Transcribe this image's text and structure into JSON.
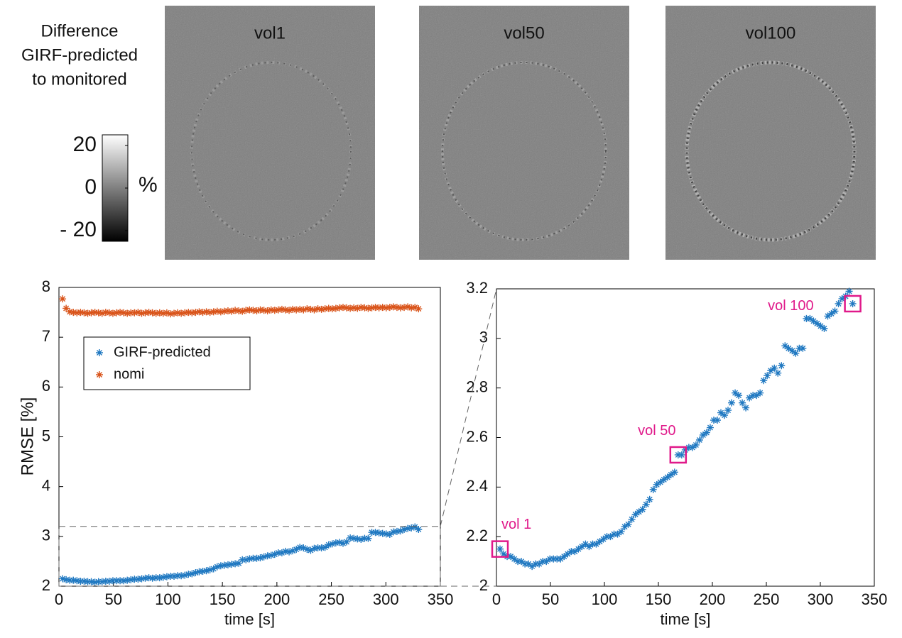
{
  "panel": {
    "label_lines": [
      "Difference",
      "GIRF-predicted",
      "to monitored"
    ],
    "colorbar": {
      "unit": "%",
      "clim": [
        -25,
        25
      ],
      "ticks": [
        20,
        0,
        {
          "value": -20,
          "label": "- 20"
        }
      ]
    },
    "image_titles": [
      "vol1",
      "vol50",
      "vol100"
    ]
  },
  "chart_data": [
    {
      "type": "scatter",
      "xlabel": "time [s]",
      "ylabel": "RMSE [%]",
      "legend": "upper left",
      "xlim": [
        0,
        350
      ],
      "ylim": [
        2,
        8
      ],
      "xticks": [
        0,
        50,
        100,
        150,
        200,
        250,
        300,
        350
      ],
      "yticks": [
        2,
        3,
        4,
        5,
        6,
        7,
        8
      ],
      "x": [
        3.3,
        6.6,
        9.9,
        13.2,
        16.5,
        19.8,
        23.1,
        26.4,
        29.7,
        33,
        36.3,
        39.6,
        42.9,
        46.2,
        49.5,
        52.8,
        56.1,
        59.4,
        62.7,
        66,
        69.3,
        72.6,
        75.9,
        79.2,
        82.5,
        85.8,
        89.1,
        92.4,
        95.7,
        99,
        102.3,
        105.6,
        108.9,
        112.2,
        115.5,
        118.8,
        122.1,
        125.4,
        128.7,
        132,
        135.3,
        138.6,
        141.9,
        145.2,
        148.5,
        151.8,
        155.1,
        158.4,
        161.7,
        165,
        168.3,
        171.6,
        174.9,
        178.2,
        181.5,
        184.8,
        188.1,
        191.4,
        194.7,
        198,
        201.3,
        204.6,
        207.9,
        211.2,
        214.5,
        217.8,
        221.1,
        224.4,
        227.7,
        231,
        234.3,
        237.6,
        240.9,
        244.2,
        247.5,
        250.8,
        254.1,
        257.4,
        260.7,
        264,
        267.3,
        270.6,
        273.9,
        277.2,
        280.5,
        283.8,
        287.1,
        290.4,
        293.7,
        297,
        300.3,
        303.6,
        306.9,
        310.2,
        313.5,
        316.8,
        320.1,
        323.4,
        326.7,
        330
      ],
      "series": [
        {
          "name": "GIRF-predicted",
          "color": "#1f78c1",
          "values": [
            2.15,
            2.13,
            2.12,
            2.12,
            2.11,
            2.1,
            2.1,
            2.09,
            2.09,
            2.08,
            2.09,
            2.09,
            2.1,
            2.1,
            2.11,
            2.11,
            2.11,
            2.11,
            2.12,
            2.13,
            2.14,
            2.14,
            2.15,
            2.16,
            2.17,
            2.16,
            2.17,
            2.17,
            2.18,
            2.19,
            2.2,
            2.2,
            2.21,
            2.21,
            2.22,
            2.24,
            2.25,
            2.27,
            2.29,
            2.3,
            2.31,
            2.33,
            2.35,
            2.39,
            2.41,
            2.42,
            2.43,
            2.44,
            2.45,
            2.46,
            2.53,
            2.53,
            2.55,
            2.56,
            2.56,
            2.57,
            2.59,
            2.61,
            2.62,
            2.64,
            2.67,
            2.67,
            2.7,
            2.69,
            2.71,
            2.74,
            2.78,
            2.77,
            2.74,
            2.72,
            2.76,
            2.77,
            2.77,
            2.78,
            2.83,
            2.85,
            2.87,
            2.88,
            2.86,
            2.89,
            2.97,
            2.96,
            2.95,
            2.94,
            2.96,
            2.96,
            3.08,
            3.08,
            3.07,
            3.06,
            3.05,
            3.04,
            3.09,
            3.1,
            3.11,
            3.14,
            3.16,
            3.17,
            3.19,
            3.14
          ]
        },
        {
          "name": "nomi",
          "color": "#d95319",
          "values": [
            7.77,
            7.58,
            7.51,
            7.5,
            7.49,
            7.5,
            7.49,
            7.48,
            7.49,
            7.5,
            7.49,
            7.48,
            7.5,
            7.49,
            7.48,
            7.49,
            7.5,
            7.49,
            7.48,
            7.49,
            7.49,
            7.5,
            7.48,
            7.49,
            7.5,
            7.49,
            7.48,
            7.49,
            7.48,
            7.49,
            7.47,
            7.48,
            7.49,
            7.48,
            7.49,
            7.5,
            7.49,
            7.5,
            7.51,
            7.5,
            7.51,
            7.5,
            7.51,
            7.52,
            7.51,
            7.52,
            7.53,
            7.52,
            7.54,
            7.53,
            7.52,
            7.54,
            7.55,
            7.54,
            7.53,
            7.55,
            7.54,
            7.53,
            7.55,
            7.54,
            7.55,
            7.56,
            7.55,
            7.54,
            7.56,
            7.55,
            7.56,
            7.55,
            7.57,
            7.56,
            7.55,
            7.57,
            7.56,
            7.57,
            7.58,
            7.57,
            7.58,
            7.59,
            7.6,
            7.59,
            7.58,
            7.59,
            7.58,
            7.6,
            7.59,
            7.58,
            7.59,
            7.6,
            7.59,
            7.6,
            7.59,
            7.6,
            7.61,
            7.6,
            7.59,
            7.6,
            7.61,
            7.59,
            7.6,
            7.57
          ]
        }
      ]
    },
    {
      "type": "scatter",
      "xlabel": "time [s]",
      "annotations": [
        "vol 1",
        "vol 50",
        "vol 100"
      ],
      "annotation_color": "#e0198a",
      "xlim": [
        0,
        350
      ],
      "ylim": [
        2,
        3.2
      ],
      "xticks": [
        0,
        50,
        100,
        150,
        200,
        250,
        300,
        350
      ],
      "yticks": [
        2,
        2.2,
        2.4,
        2.6,
        2.8,
        3,
        3.2
      ],
      "x": [
        3.3,
        6.6,
        9.9,
        13.2,
        16.5,
        19.8,
        23.1,
        26.4,
        29.7,
        33,
        36.3,
        39.6,
        42.9,
        46.2,
        49.5,
        52.8,
        56.1,
        59.4,
        62.7,
        66,
        69.3,
        72.6,
        75.9,
        79.2,
        82.5,
        85.8,
        89.1,
        92.4,
        95.7,
        99,
        102.3,
        105.6,
        108.9,
        112.2,
        115.5,
        118.8,
        122.1,
        125.4,
        128.7,
        132,
        135.3,
        138.6,
        141.9,
        145.2,
        148.5,
        151.8,
        155.1,
        158.4,
        161.7,
        165,
        168.3,
        171.6,
        174.9,
        178.2,
        181.5,
        184.8,
        188.1,
        191.4,
        194.7,
        198,
        201.3,
        204.6,
        207.9,
        211.2,
        214.5,
        217.8,
        221.1,
        224.4,
        227.7,
        231,
        234.3,
        237.6,
        240.9,
        244.2,
        247.5,
        250.8,
        254.1,
        257.4,
        260.7,
        264,
        267.3,
        270.6,
        273.9,
        277.2,
        280.5,
        283.8,
        287.1,
        290.4,
        293.7,
        297,
        300.3,
        303.6,
        306.9,
        310.2,
        313.5,
        316.8,
        320.1,
        323.4,
        326.7,
        330
      ],
      "series": [
        {
          "color": "#1f78c1",
          "values": [
            2.15,
            2.13,
            2.12,
            2.12,
            2.11,
            2.1,
            2.1,
            2.09,
            2.09,
            2.08,
            2.09,
            2.09,
            2.1,
            2.1,
            2.11,
            2.11,
            2.11,
            2.11,
            2.12,
            2.13,
            2.14,
            2.14,
            2.15,
            2.16,
            2.17,
            2.16,
            2.17,
            2.17,
            2.18,
            2.19,
            2.2,
            2.2,
            2.21,
            2.21,
            2.22,
            2.24,
            2.25,
            2.27,
            2.29,
            2.3,
            2.31,
            2.33,
            2.35,
            2.39,
            2.41,
            2.42,
            2.43,
            2.44,
            2.45,
            2.46,
            2.53,
            2.53,
            2.55,
            2.56,
            2.56,
            2.57,
            2.59,
            2.61,
            2.62,
            2.64,
            2.67,
            2.67,
            2.7,
            2.69,
            2.71,
            2.74,
            2.78,
            2.77,
            2.74,
            2.72,
            2.76,
            2.77,
            2.77,
            2.78,
            2.83,
            2.85,
            2.87,
            2.88,
            2.86,
            2.89,
            2.97,
            2.96,
            2.95,
            2.94,
            2.96,
            2.96,
            3.08,
            3.08,
            3.07,
            3.06,
            3.05,
            3.04,
            3.09,
            3.1,
            3.11,
            3.14,
            3.16,
            3.17,
            3.19,
            3.14
          ]
        }
      ]
    }
  ]
}
